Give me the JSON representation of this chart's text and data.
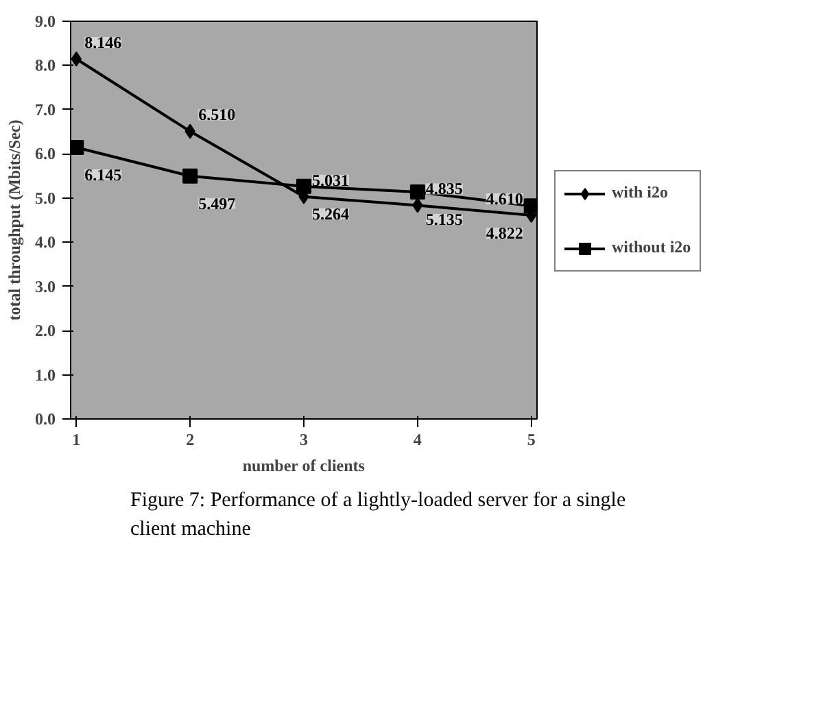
{
  "chart_data": {
    "type": "line",
    "xlabel": "number of clients",
    "ylabel": "total throughput (Mbits/Sec)",
    "categories": [
      "1",
      "2",
      "3",
      "4",
      "5"
    ],
    "series": [
      {
        "name": "with i2o",
        "color": "#000000",
        "marker": "diamond",
        "values": [
          8.146,
          6.51,
          5.031,
          4.835,
          4.61
        ],
        "value_labels": [
          "8.146",
          "6.510",
          "5.031",
          "4.835",
          "4.610"
        ]
      },
      {
        "name": "without i2o",
        "color": "#000000",
        "marker": "square",
        "values": [
          6.145,
          5.497,
          5.264,
          5.135,
          4.822
        ],
        "value_labels": [
          "6.145",
          "5.497",
          "5.264",
          "5.135",
          "4.822"
        ]
      }
    ],
    "ylim": [
      0,
      9
    ],
    "yticks": [
      {
        "value": 0,
        "label": "0.0"
      },
      {
        "value": 1,
        "label": "1.0"
      },
      {
        "value": 2,
        "label": "2.0"
      },
      {
        "value": 3,
        "label": "3.0"
      },
      {
        "value": 4,
        "label": "4.0"
      },
      {
        "value": 5,
        "label": "5.0"
      },
      {
        "value": 6,
        "label": "6.0"
      },
      {
        "value": 7,
        "label": "7.0"
      },
      {
        "value": 8,
        "label": "8.0"
      },
      {
        "value": 9,
        "label": "9.0"
      }
    ],
    "grid": false,
    "legend": "right",
    "line_style": "solid",
    "annotations": [
      "Figure 7: Performance of a lightly-loaded server for a single client machine"
    ]
  }
}
